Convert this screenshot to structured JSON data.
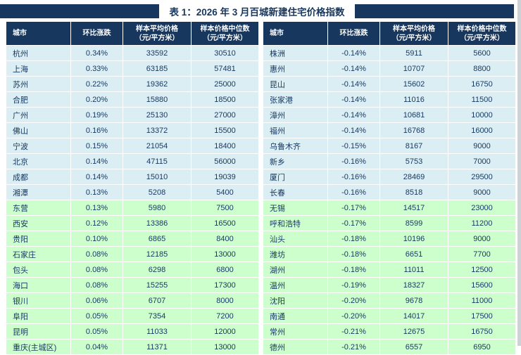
{
  "title": "表 1：2026 年 3 月百城新建住宅价格指数",
  "columns": [
    {
      "label": "城市",
      "sub": ""
    },
    {
      "label": "环比涨跌",
      "sub": ""
    },
    {
      "label": "样本平均价格",
      "sub": "（元/平方米）"
    },
    {
      "label": "样本价格中位数",
      "sub": "（元/平方米）"
    }
  ],
  "left_table": {
    "green_start": 10,
    "rows": [
      [
        "杭州",
        "0.34%",
        "33592",
        "30510"
      ],
      [
        "上海",
        "0.33%",
        "63185",
        "57481"
      ],
      [
        "苏州",
        "0.22%",
        "19362",
        "25000"
      ],
      [
        "合肥",
        "0.20%",
        "15880",
        "18500"
      ],
      [
        "广州",
        "0.19%",
        "25130",
        "27000"
      ],
      [
        "佛山",
        "0.16%",
        "13372",
        "15500"
      ],
      [
        "宁波",
        "0.15%",
        "21054",
        "18400"
      ],
      [
        "北京",
        "0.14%",
        "47115",
        "56000"
      ],
      [
        "成都",
        "0.14%",
        "15010",
        "19039"
      ],
      [
        "湘潭",
        "0.13%",
        "5208",
        "5400"
      ],
      [
        "东营",
        "0.13%",
        "5980",
        "7500"
      ],
      [
        "西安",
        "0.12%",
        "13386",
        "16500"
      ],
      [
        "贵阳",
        "0.10%",
        "6865",
        "8400"
      ],
      [
        "石家庄",
        "0.08%",
        "12185",
        "13000"
      ],
      [
        "包头",
        "0.08%",
        "6298",
        "6800"
      ],
      [
        "海口",
        "0.08%",
        "15255",
        "17300"
      ],
      [
        "银川",
        "0.06%",
        "6707",
        "8000"
      ],
      [
        "阜阳",
        "0.05%",
        "7354",
        "7200"
      ],
      [
        "昆明",
        "0.05%",
        "11033",
        "12000"
      ],
      [
        "重庆(主城区)",
        "0.04%",
        "11371",
        "13000"
      ]
    ]
  },
  "right_table": {
    "green_start": 10,
    "rows": [
      [
        "株洲",
        "-0.14%",
        "5911",
        "5600"
      ],
      [
        "惠州",
        "-0.14%",
        "10707",
        "8800"
      ],
      [
        "昆山",
        "-0.14%",
        "15602",
        "16750"
      ],
      [
        "张家港",
        "-0.14%",
        "11016",
        "11500"
      ],
      [
        "漳州",
        "-0.14%",
        "10681",
        "10000"
      ],
      [
        "福州",
        "-0.14%",
        "16768",
        "16000"
      ],
      [
        "乌鲁木齐",
        "-0.15%",
        "8167",
        "9000"
      ],
      [
        "新乡",
        "-0.16%",
        "5753",
        "7000"
      ],
      [
        "厦门",
        "-0.16%",
        "28469",
        "29500"
      ],
      [
        "长春",
        "-0.16%",
        "8518",
        "9000"
      ],
      [
        "无锡",
        "-0.17%",
        "14517",
        "23000"
      ],
      [
        "呼和浩特",
        "-0.17%",
        "8599",
        "11200"
      ],
      [
        "汕头",
        "-0.18%",
        "10196",
        "9000"
      ],
      [
        "潍坊",
        "-0.18%",
        "6651",
        "7700"
      ],
      [
        "湖州",
        "-0.18%",
        "11011",
        "12500"
      ],
      [
        "温州",
        "-0.19%",
        "18327",
        "15600"
      ],
      [
        "沈阳",
        "-0.20%",
        "9678",
        "11000"
      ],
      [
        "南通",
        "-0.20%",
        "14017",
        "17500"
      ],
      [
        "常州",
        "-0.21%",
        "12675",
        "16750"
      ],
      [
        "德州",
        "-0.21%",
        "6557",
        "6950"
      ]
    ]
  },
  "colors": {
    "header_bg": "#17375E",
    "band_blue": "#DAEEF3",
    "band_green": "#CCFFCC",
    "text": "#17375E"
  }
}
